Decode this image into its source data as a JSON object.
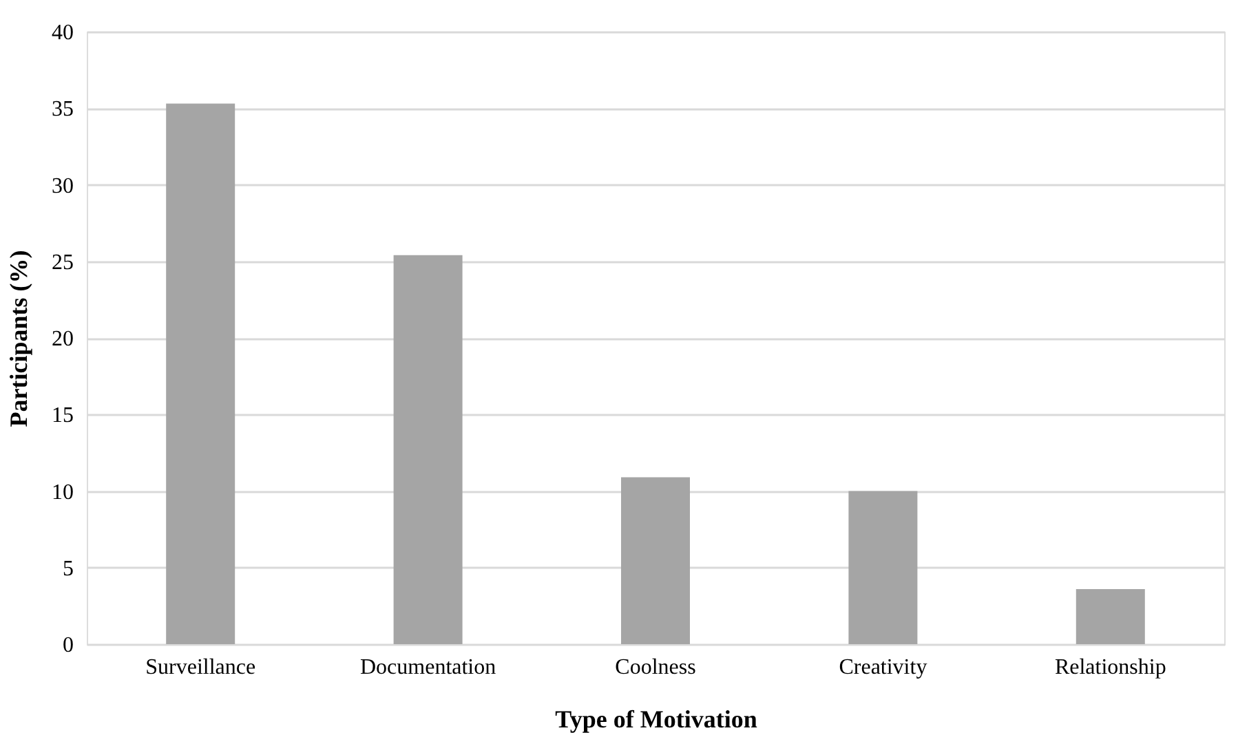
{
  "chart_data": {
    "type": "bar",
    "xlabel": "Type of Motivation",
    "ylabel": "Participants (%)",
    "categories": [
      "Surveillance",
      "Documentation",
      "Coolness",
      "Creativity",
      "Relationship"
    ],
    "values": [
      35.3,
      25.4,
      10.9,
      10,
      3.6
    ],
    "color": "#a5a5a5",
    "ylim": [
      0,
      40
    ],
    "yticks": [
      0,
      5,
      10,
      15,
      20,
      25,
      30,
      35,
      40
    ],
    "grid": "y"
  }
}
